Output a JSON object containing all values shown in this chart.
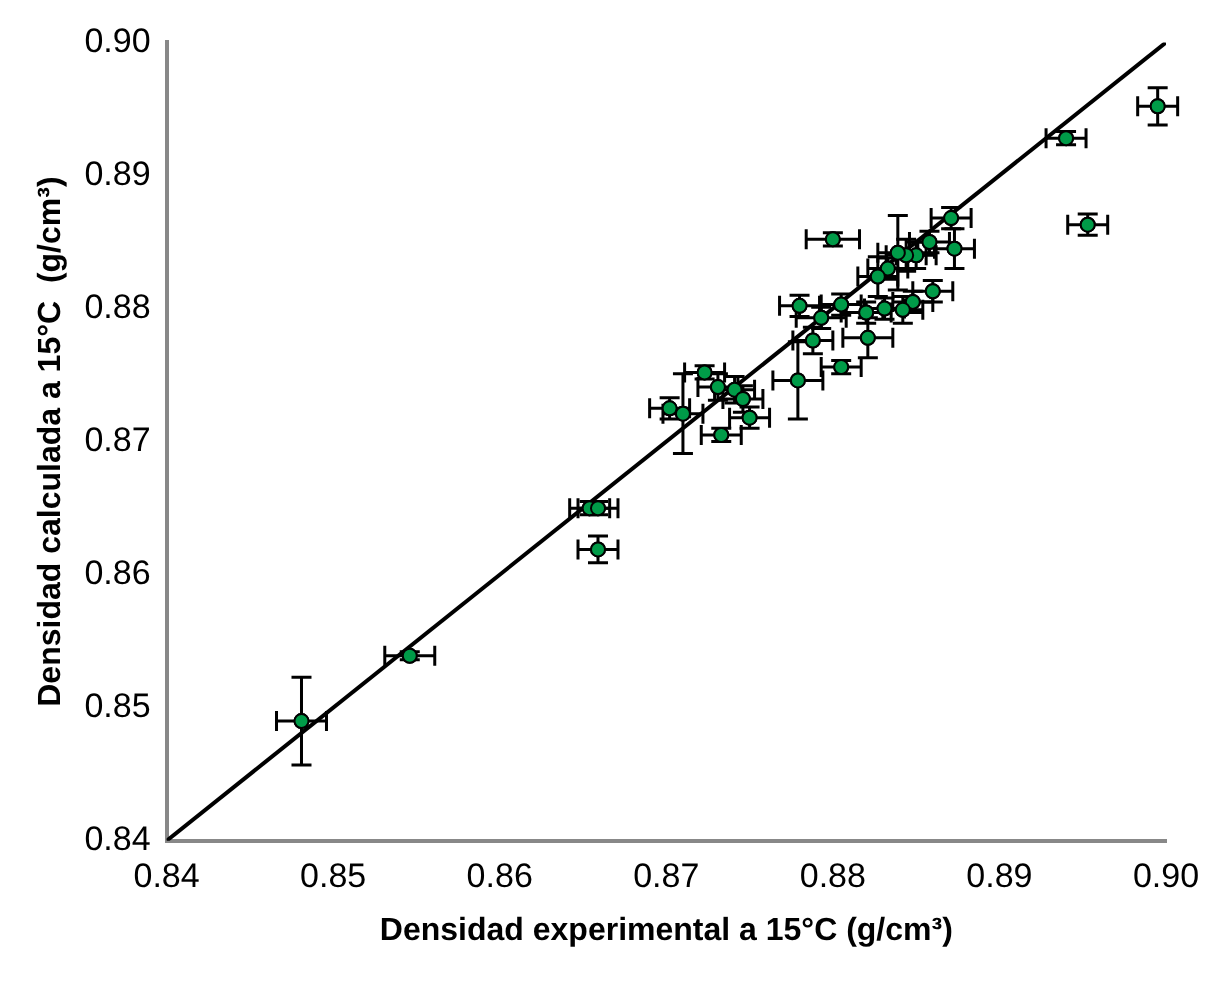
{
  "chart_data": {
    "type": "scatter",
    "xlabel": "Densidad experimental a 15°C (g/cm³)",
    "ylabel": "Densidad calculada a 15°C  (g/cm³)",
    "xlim": [
      0.84,
      0.9
    ],
    "ylim": [
      0.84,
      0.9
    ],
    "xticks": [
      {
        "value": 0.84,
        "label": "0.84"
      },
      {
        "value": 0.85,
        "label": "0.85"
      },
      {
        "value": 0.86,
        "label": "0.86"
      },
      {
        "value": 0.87,
        "label": "0.87"
      },
      {
        "value": 0.88,
        "label": "0.88"
      },
      {
        "value": 0.89,
        "label": "0.89"
      },
      {
        "value": 0.9,
        "label": "0.90"
      }
    ],
    "yticks": [
      {
        "value": 0.84,
        "label": "0.84"
      },
      {
        "value": 0.85,
        "label": "0.85"
      },
      {
        "value": 0.86,
        "label": "0.86"
      },
      {
        "value": 0.87,
        "label": "0.87"
      },
      {
        "value": 0.88,
        "label": "0.88"
      },
      {
        "value": 0.89,
        "label": "0.89"
      },
      {
        "value": 0.9,
        "label": "0.90"
      }
    ],
    "grid": false,
    "legend": false,
    "marker": "circle",
    "series": [
      {
        "type": "scatter",
        "color": "#009b48",
        "x": [
          0.8481,
          0.8546,
          0.8654,
          0.8659,
          0.8659,
          0.8995,
          0.894,
          0.8953,
          0.88,
          0.8871,
          0.8873,
          0.8858,
          0.885,
          0.8844,
          0.8839,
          0.8833,
          0.8827,
          0.886,
          0.8848,
          0.8842,
          0.8831,
          0.882,
          0.8805,
          0.8793,
          0.878,
          0.8821,
          0.8788,
          0.8805,
          0.8779,
          0.8723,
          0.8731,
          0.8741,
          0.8746,
          0.8702,
          0.871,
          0.875,
          0.8733
        ],
        "values": [
          0.849,
          0.8539,
          0.865,
          0.865,
          0.8619,
          0.8952,
          0.8928,
          0.8863,
          0.8852,
          0.8868,
          0.8845,
          0.885,
          0.884,
          0.884,
          0.8842,
          0.883,
          0.8824,
          0.8813,
          0.8805,
          0.8799,
          0.88,
          0.8797,
          0.8803,
          0.8793,
          0.8802,
          0.8778,
          0.8776,
          0.8756,
          0.8746,
          0.8752,
          0.8741,
          0.8739,
          0.8732,
          0.8725,
          0.8721,
          0.8718,
          0.8705
        ],
        "errors": [
          0.0033,
          0.0003,
          0.0005,
          0.0005,
          0.001,
          0.0014,
          0.0005,
          0.0008,
          0.0005,
          0.0008,
          0.0015,
          0.0008,
          0.001,
          0.0012,
          0.0028,
          0.0008,
          0.0015,
          0.0008,
          0.0008,
          0.001,
          0.0008,
          0.0008,
          0.0008,
          0.0008,
          0.0008,
          0.0015,
          0.001,
          0.0005,
          0.0029,
          0.0005,
          0.001,
          0.001,
          0.001,
          0.0008,
          0.003,
          0.0008,
          0.0005
        ],
        "xerrors": [
          0.0015,
          0.0015,
          0.0012,
          0.0012,
          0.0012,
          0.0012,
          0.0012,
          0.0012,
          0.0016,
          0.0012,
          0.0012,
          0.0012,
          0.0012,
          0.0012,
          0.0012,
          0.0012,
          0.0012,
          0.0012,
          0.0012,
          0.0012,
          0.0012,
          0.0015,
          0.0012,
          0.0015,
          0.0012,
          0.0015,
          0.0012,
          0.0012,
          0.0015,
          0.0012,
          0.0012,
          0.0012,
          0.0012,
          0.0012,
          0.0012,
          0.0012,
          0.0012
        ]
      },
      {
        "type": "line",
        "color": "#000000",
        "marker": "none",
        "x": [
          0.84,
          0.9
        ],
        "values": [
          0.84,
          0.9
        ]
      }
    ]
  }
}
